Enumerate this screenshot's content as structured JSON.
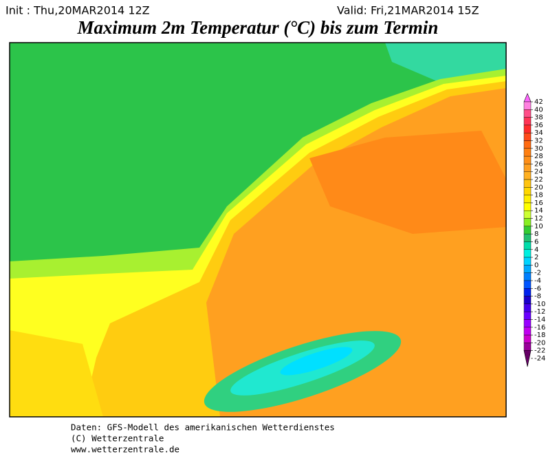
{
  "header": {
    "init": "Init : Thu,20MAR2014 12Z",
    "valid": "Valid: Fri,21MAR2014 15Z",
    "title": "Maximum 2m Temperatur (°C) bis zum Termin"
  },
  "colorbar": {
    "ticks": [
      42,
      40,
      38,
      36,
      34,
      32,
      30,
      28,
      26,
      24,
      22,
      20,
      18,
      16,
      14,
      12,
      10,
      8,
      6,
      4,
      2,
      0,
      -2,
      -4,
      -6,
      -8,
      -10,
      -12,
      -14,
      -16,
      -18,
      -20,
      -22,
      -24
    ],
    "colors": [
      "#ff66ff",
      "#ff80e0",
      "#ff4d88",
      "#ff3355",
      "#ff2a2a",
      "#ff4a1a",
      "#ff6a10",
      "#ff7f10",
      "#ff8f18",
      "#ffa020",
      "#ffb020",
      "#ffc410",
      "#ffd700",
      "#ffee00",
      "#ffff00",
      "#ccff33",
      "#88ee22",
      "#33cc33",
      "#22c070",
      "#00ddaa",
      "#00f0e0",
      "#00d4ff",
      "#00aaff",
      "#0080ff",
      "#0055ff",
      "#0022ee",
      "#1a00cc",
      "#4400ee",
      "#6a00ff",
      "#9900ff",
      "#c000f0",
      "#cc00cc",
      "#99009a",
      "#660066"
    ]
  },
  "footer": [
    "Daten: GFS-Modell des amerikanischen Wetterdienstes",
    "(C) Wetterzentrale",
    "www.wetterzentrale.de"
  ]
}
